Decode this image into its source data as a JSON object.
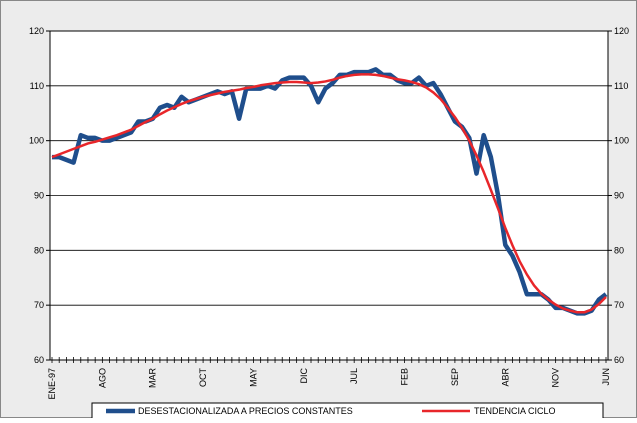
{
  "chart_data": {
    "type": "line",
    "categories": [
      "ENE-97",
      null,
      null,
      null,
      null,
      null,
      null,
      "AGO",
      null,
      null,
      null,
      null,
      null,
      null,
      "MAR",
      null,
      null,
      null,
      null,
      null,
      null,
      "OCT",
      null,
      null,
      null,
      null,
      null,
      null,
      "MAY",
      null,
      null,
      null,
      null,
      null,
      null,
      "DIC",
      null,
      null,
      null,
      null,
      null,
      null,
      "JUL",
      null,
      null,
      null,
      null,
      null,
      null,
      "FEB",
      null,
      null,
      null,
      null,
      null,
      null,
      "SEP",
      null,
      null,
      null,
      null,
      null,
      null,
      "ABR",
      null,
      null,
      null,
      null,
      null,
      null,
      "NOV",
      null,
      null,
      null,
      null,
      null,
      null,
      "JUN"
    ],
    "series": [
      {
        "name": "DESESTACIONALIZADA A PRECIOS CONSTANTES",
        "color": "#1f4e8c",
        "values": [
          97,
          97,
          96.5,
          96,
          101,
          100.5,
          100.5,
          100,
          100,
          100.5,
          101,
          101.5,
          103.5,
          103.5,
          104,
          106,
          106.5,
          106,
          108,
          107,
          107.5,
          108,
          108.5,
          109,
          108.5,
          109,
          104,
          109.5,
          109.5,
          109.5,
          110,
          109.5,
          111,
          111.5,
          111.5,
          111.5,
          110,
          107,
          109.5,
          110.5,
          112,
          112,
          112.5,
          112.5,
          112.5,
          113,
          112,
          112,
          111,
          110.5,
          110.5,
          111.5,
          110,
          110.5,
          108.5,
          106,
          103.5,
          102.5,
          100.5,
          94,
          101,
          97,
          90,
          81,
          79,
          76,
          72,
          72,
          72,
          71,
          69.5,
          69.5,
          69,
          68.5,
          68.5,
          69,
          71,
          72
        ]
      },
      {
        "name": "TENDENCIA CICLO",
        "color": "#e8262a",
        "values": [
          97,
          97.5,
          98,
          98.5,
          99,
          99.5,
          99.8,
          100.2,
          100.6,
          101,
          101.5,
          102,
          102.7,
          103.4,
          104,
          104.8,
          105.5,
          106.1,
          106.7,
          107.2,
          107.6,
          108,
          108.3,
          108.6,
          108.9,
          109.1,
          109.3,
          109.6,
          109.8,
          110.1,
          110.3,
          110.5,
          110.6,
          110.7,
          110.7,
          110.6,
          110.5,
          110.6,
          110.8,
          111.1,
          111.5,
          111.8,
          112,
          112.1,
          112.1,
          112,
          111.8,
          111.5,
          111.2,
          111,
          110.7,
          110.3,
          109.7,
          108.8,
          107.6,
          106,
          104.3,
          102.3,
          100,
          97.3,
          94.3,
          91,
          87.6,
          84.1,
          80.9,
          78,
          75.6,
          73.6,
          72.1,
          71,
          70.1,
          69.4,
          69,
          68.7,
          68.7,
          69.2,
          70.2,
          71.5
        ]
      }
    ],
    "ylim": [
      60,
      120
    ],
    "yticks": [
      60,
      70,
      80,
      90,
      100,
      110,
      120
    ],
    "y2lim": [
      60,
      120
    ],
    "y2ticks": [
      60,
      70,
      80,
      90,
      100,
      110,
      120
    ],
    "grid": true,
    "legend": "bottom"
  }
}
